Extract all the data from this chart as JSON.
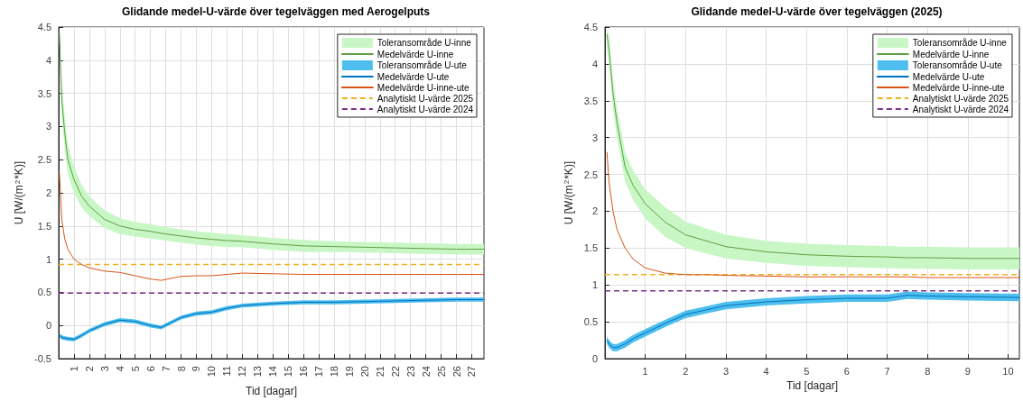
{
  "chart_data": [
    {
      "type": "line",
      "title": "Glidande medel-U-värde över tegelväggen med Aerogelputs",
      "xlabel": "Tid [dagar]",
      "ylabel": "U [W/(m$^{2}$*K)]",
      "xlim": [
        0,
        27.8
      ],
      "xticks": [
        1,
        2,
        3,
        4,
        5,
        6,
        7,
        8,
        9,
        10,
        11,
        12,
        13,
        14,
        15,
        16,
        17,
        18,
        19,
        20,
        21,
        22,
        23,
        24,
        25,
        26,
        27
      ],
      "ylim": [
        -0.5,
        4.5
      ],
      "yticks": [
        -0.5,
        0,
        0.5,
        1,
        1.5,
        2,
        2.5,
        3,
        3.5,
        4,
        4.5
      ],
      "grid": true,
      "legend": "top right",
      "marker": "none",
      "x": [
        0.05,
        0.2,
        0.4,
        0.6,
        1,
        1.5,
        2,
        3,
        4,
        5,
        6,
        6.7,
        8,
        9,
        10,
        11,
        12,
        14,
        16,
        18,
        20,
        22,
        24,
        26,
        27.8
      ],
      "series": [
        {
          "type": "line",
          "name": "Toleransområde U-inne",
          "color": "#c8f7c5",
          "values": [
            null,
            null,
            null,
            null,
            null,
            null,
            null,
            null,
            null,
            null,
            null,
            null,
            null,
            null,
            null,
            null,
            null,
            null,
            null,
            null,
            null,
            null,
            null,
            null,
            null
          ],
          "upper": [
            4.5,
            3.65,
            3.15,
            2.72,
            2.4,
            2.12,
            1.95,
            1.73,
            1.62,
            1.56,
            1.53,
            1.49,
            1.45,
            1.42,
            1.4,
            1.38,
            1.36,
            1.32,
            1.29,
            1.27,
            1.26,
            1.25,
            1.24,
            1.23,
            1.23
          ],
          "lower": [
            4.3,
            3.15,
            2.65,
            2.28,
            2.0,
            1.78,
            1.65,
            1.47,
            1.38,
            1.34,
            1.31,
            1.29,
            1.25,
            1.22,
            1.2,
            1.18,
            1.18,
            1.14,
            1.11,
            1.11,
            1.1,
            1.09,
            1.08,
            1.07,
            1.07
          ]
        },
        {
          "type": "line",
          "name": "Medelvärde U-inne",
          "color": "#5f9e45",
          "values": [
            4.4,
            3.4,
            2.9,
            2.5,
            2.2,
            1.95,
            1.8,
            1.6,
            1.5,
            1.45,
            1.42,
            1.39,
            1.35,
            1.32,
            1.3,
            1.28,
            1.27,
            1.23,
            1.2,
            1.19,
            1.18,
            1.17,
            1.16,
            1.15,
            1.15
          ]
        },
        {
          "type": "line",
          "name": "Toleransområde U-ute",
          "color": "#4dbeee",
          "values": [
            null,
            null,
            null,
            null,
            null,
            null,
            null,
            null,
            null,
            null,
            null,
            null,
            null,
            null,
            null,
            null,
            null,
            null,
            null,
            null,
            null,
            null,
            null,
            null,
            null
          ],
          "upper": [
            -0.12,
            -0.15,
            -0.16,
            -0.17,
            -0.18,
            -0.12,
            -0.05,
            0.05,
            0.11,
            0.09,
            0.03,
            0.0,
            0.15,
            0.21,
            0.23,
            0.29,
            0.33,
            0.36,
            0.38,
            0.38,
            0.39,
            0.4,
            0.41,
            0.42,
            0.42
          ],
          "lower": [
            -0.18,
            -0.21,
            -0.22,
            -0.23,
            -0.24,
            -0.18,
            -0.11,
            -0.01,
            0.05,
            0.03,
            -0.03,
            -0.06,
            0.09,
            0.15,
            0.17,
            0.23,
            0.27,
            0.3,
            0.32,
            0.32,
            0.33,
            0.34,
            0.35,
            0.36,
            0.36
          ]
        },
        {
          "type": "line",
          "name": "Medelvärde U-ute",
          "color": "#0072bd",
          "values": [
            -0.15,
            -0.18,
            -0.19,
            -0.2,
            -0.21,
            -0.15,
            -0.08,
            0.02,
            0.08,
            0.06,
            0.0,
            -0.03,
            0.12,
            0.18,
            0.2,
            0.26,
            0.3,
            0.33,
            0.35,
            0.35,
            0.36,
            0.37,
            0.38,
            0.39,
            0.39
          ]
        },
        {
          "type": "line",
          "name": "Medelvärde U-inne-ute",
          "color": "#d95319",
          "values": [
            2.3,
            1.6,
            1.3,
            1.15,
            1.0,
            0.92,
            0.87,
            0.82,
            0.8,
            0.75,
            0.7,
            0.68,
            0.74,
            0.75,
            0.75,
            0.77,
            0.79,
            0.78,
            0.77,
            0.77,
            0.77,
            0.77,
            0.77,
            0.77,
            0.77
          ]
        }
      ],
      "ref_lines": [
        {
          "axis": "y",
          "value": 0.92,
          "label": "Analytiskt U-värde 2025",
          "color": "#edb120",
          "line_style": "dashed"
        },
        {
          "axis": "y",
          "value": 0.49,
          "label": "Analytiskt U-värde 2024",
          "color": "#7e2f8e",
          "line_style": "dashed"
        }
      ]
    },
    {
      "type": "line",
      "title": "Glidande medel-U-värde över tegelväggen (2025)",
      "xlabel": "Tid [dagar]",
      "ylabel": "U [W/(m$^{2}$*K)]",
      "xlim": [
        0,
        10.28
      ],
      "xticks": [
        1,
        2,
        3,
        4,
        5,
        6,
        7,
        8,
        9,
        10
      ],
      "ylim": [
        0,
        4.5
      ],
      "yticks": [
        0,
        0.5,
        1,
        1.5,
        2,
        2.5,
        3,
        3.5,
        4,
        4.5
      ],
      "grid": true,
      "legend": "top right",
      "marker": "none",
      "x": [
        0.05,
        0.1,
        0.2,
        0.3,
        0.5,
        0.7,
        1,
        1.5,
        2,
        2.5,
        3,
        4,
        5,
        6,
        7,
        7.5,
        8,
        9,
        10.28
      ],
      "series": [
        {
          "type": "line",
          "name": "Toleransområde U-inne",
          "color": "#c8f7c5",
          "values": [
            null,
            null,
            null,
            null,
            null,
            null,
            null,
            null,
            null,
            null,
            null,
            null,
            null,
            null,
            null,
            null,
            null,
            null,
            null
          ],
          "upper": [
            4.5,
            4.4,
            3.8,
            3.4,
            2.8,
            2.55,
            2.3,
            2.05,
            1.86,
            1.77,
            1.68,
            1.6,
            1.56,
            1.54,
            1.53,
            1.52,
            1.52,
            1.51,
            1.51
          ],
          "lower": [
            4.2,
            4.0,
            3.4,
            3.0,
            2.4,
            2.15,
            1.9,
            1.65,
            1.5,
            1.43,
            1.36,
            1.3,
            1.26,
            1.24,
            1.23,
            1.22,
            1.22,
            1.21,
            1.21
          ]
        },
        {
          "type": "line",
          "name": "Medelvärde U-inne",
          "color": "#5f9e45",
          "values": [
            4.4,
            4.2,
            3.6,
            3.2,
            2.6,
            2.35,
            2.1,
            1.85,
            1.68,
            1.6,
            1.52,
            1.45,
            1.41,
            1.39,
            1.38,
            1.37,
            1.37,
            1.36,
            1.36
          ]
        },
        {
          "type": "line",
          "name": "Toleransområde U-ute",
          "color": "#4dbeee",
          "values": [
            null,
            null,
            null,
            null,
            null,
            null,
            null,
            null,
            null,
            null,
            null,
            null,
            null,
            null,
            null,
            null,
            null,
            null,
            null
          ],
          "upper": [
            0.3,
            0.25,
            0.2,
            0.2,
            0.25,
            0.32,
            0.4,
            0.53,
            0.65,
            0.71,
            0.77,
            0.82,
            0.85,
            0.87,
            0.87,
            0.91,
            0.9,
            0.89,
            0.88
          ],
          "lower": [
            0.2,
            0.15,
            0.1,
            0.1,
            0.15,
            0.22,
            0.3,
            0.43,
            0.55,
            0.61,
            0.67,
            0.72,
            0.75,
            0.77,
            0.77,
            0.81,
            0.8,
            0.79,
            0.78
          ]
        },
        {
          "type": "line",
          "name": "Medelvärde U-ute",
          "color": "#0072bd",
          "values": [
            0.25,
            0.2,
            0.15,
            0.15,
            0.2,
            0.27,
            0.35,
            0.48,
            0.6,
            0.66,
            0.72,
            0.77,
            0.8,
            0.82,
            0.82,
            0.86,
            0.85,
            0.84,
            0.83
          ]
        },
        {
          "type": "line",
          "name": "Medelvärde U-inne-ute",
          "color": "#d95319",
          "values": [
            2.8,
            2.4,
            2.0,
            1.75,
            1.5,
            1.35,
            1.23,
            1.16,
            1.14,
            1.14,
            1.13,
            1.12,
            1.11,
            1.11,
            1.11,
            1.11,
            1.1,
            1.1,
            1.1
          ]
        }
      ],
      "ref_lines": [
        {
          "axis": "y",
          "value": 1.14,
          "label": "Analytiskt U-värde 2025",
          "color": "#edb120",
          "line_style": "dashed"
        },
        {
          "axis": "y",
          "value": 0.92,
          "label": "Analytiskt U-värde 2024",
          "color": "#7e2f8e",
          "line_style": "dashed"
        }
      ]
    }
  ]
}
